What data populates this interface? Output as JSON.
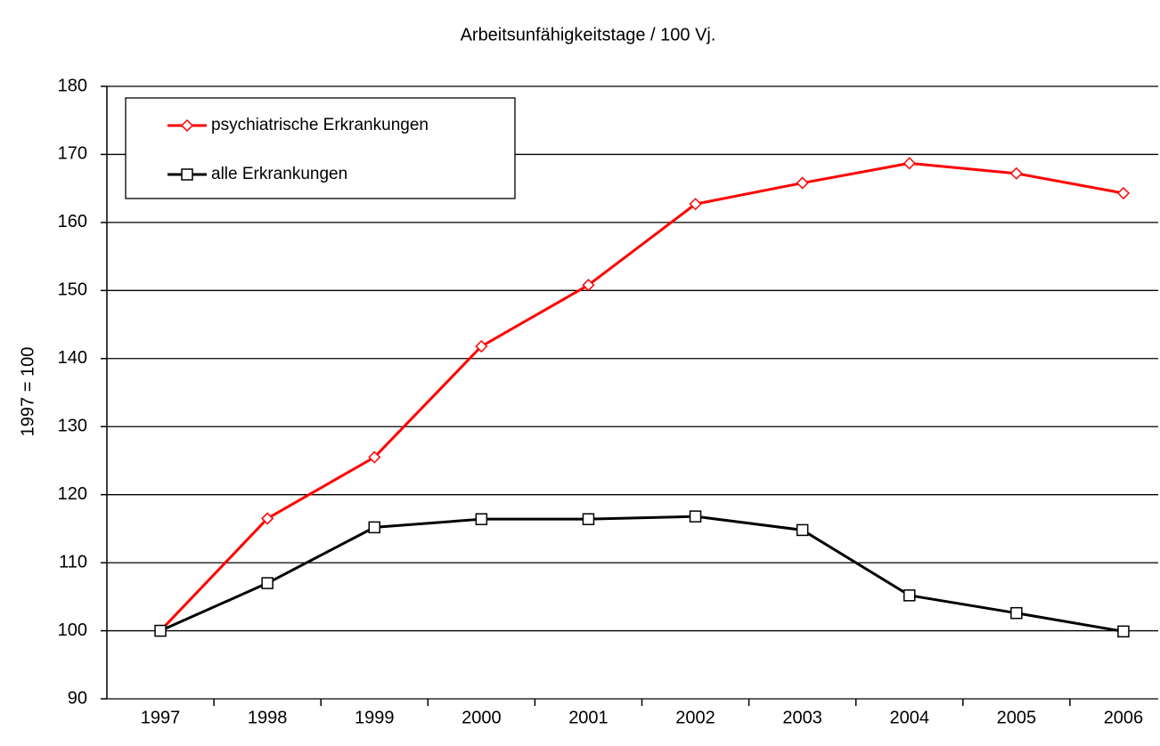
{
  "chart_data": {
    "type": "line",
    "title": "Arbeitsunfähigkeitstage / 100 Vj.",
    "y_label": "1997 = 100",
    "categories": [
      "1997",
      "1998",
      "1999",
      "2000",
      "2001",
      "2002",
      "2003",
      "2004",
      "2005",
      "2006"
    ],
    "series": [
      {
        "name": "psychiatrische Erkrankungen",
        "color": "#ff0000",
        "marker": "diamond",
        "values": [
          100,
          116.5,
          125.5,
          141.8,
          150.8,
          162.7,
          165.8,
          168.7,
          167.2,
          164.3
        ]
      },
      {
        "name": "alle Erkrankungen",
        "color": "#000000",
        "marker": "square",
        "values": [
          100,
          107,
          115.2,
          116.4,
          116.4,
          116.8,
          114.8,
          105.2,
          102.6,
          99.9
        ]
      }
    ],
    "ylim": [
      90,
      180
    ],
    "yticks": [
      90,
      100,
      110,
      120,
      130,
      140,
      150,
      160,
      170,
      180
    ],
    "grid": true,
    "legend": "upper left"
  }
}
